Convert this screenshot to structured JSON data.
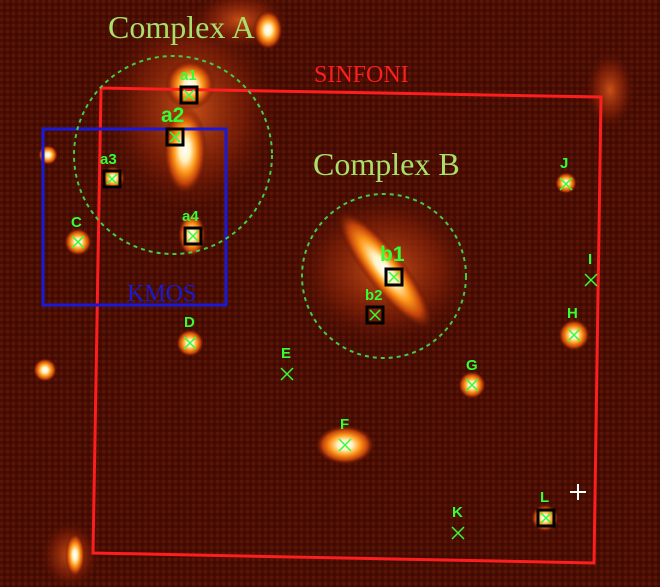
{
  "image": {
    "background_color": "#4a0d03",
    "colors": {
      "field_label": "#a8e06a",
      "sinfoni_box": "#ff1e1e",
      "kmos_box": "#1a1ad6",
      "source_label": "#33ff33",
      "marker_cross": "#33ff33",
      "circle": "#44cc44"
    }
  },
  "regions": {
    "complex_a": "Complex A",
    "complex_b": "Complex B",
    "sinfoni": "SINFONI",
    "kmos": "KMOS"
  },
  "sources": {
    "a1": "a1",
    "a2": "a2",
    "a3": "a3",
    "a4": "a4",
    "b1": "b1",
    "b2": "b2",
    "c": "C",
    "d": "D",
    "e": "E",
    "f": "F",
    "g": "G",
    "h": "H",
    "i": "I",
    "j": "J",
    "k": "K",
    "l": "L"
  }
}
